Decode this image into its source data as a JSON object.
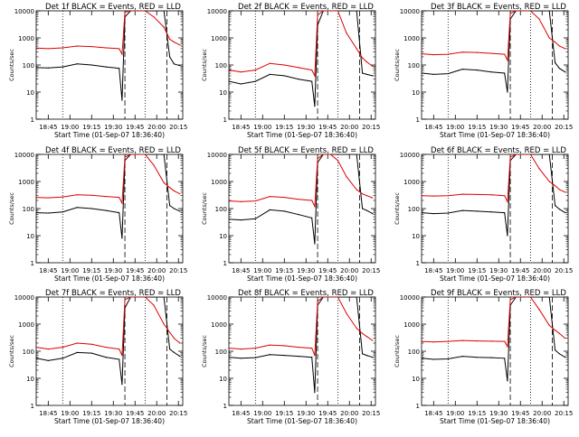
{
  "chart_data": {
    "type": "line",
    "layout": "3x3 grid",
    "shared_xlabel": "Start Time (01-Sep-07 18:36:40)",
    "shared_ylabel": "Counts/sec",
    "yscale": "log",
    "ylim": [
      1,
      10000
    ],
    "yticks": [
      "1",
      "10",
      "100",
      "1000",
      "10000"
    ],
    "xlim": [
      "18:36:40",
      "20:18:00"
    ],
    "xticks": [
      "18:45",
      "19:00",
      "19:15",
      "19:30",
      "19:45",
      "20:00",
      "20:15"
    ],
    "vertical_markers": [
      {
        "style": "dotted",
        "x": "18:55"
      },
      {
        "style": "dashed",
        "x": "19:38"
      },
      {
        "style": "dotted",
        "x": "19:52"
      },
      {
        "style": "dashed",
        "x": "20:07"
      }
    ],
    "colors": {
      "events": "#000000",
      "lld": "#dd0000"
    },
    "panels": [
      {
        "title": "Det 1f BLACK = Events, RED = LLD",
        "series": [
          {
            "name": "Events",
            "color": "#000000",
            "x": [
              "18:37",
              "18:45",
              "18:55",
              "19:05",
              "19:15",
              "19:25",
              "19:34",
              "19:36",
              "19:38",
              "19:42",
              "19:47",
              "19:52",
              "19:58",
              "20:05",
              "20:09",
              "20:12",
              "20:16"
            ],
            "y": [
              80,
              78,
              85,
              110,
              100,
              85,
              75,
              5,
              6000,
              10000,
              10000,
              10000,
              10000,
              10000,
              200,
              110,
              95
            ]
          },
          {
            "name": "LLD",
            "color": "#dd0000",
            "x": [
              "18:37",
              "18:45",
              "18:55",
              "19:05",
              "19:15",
              "19:25",
              "19:34",
              "19:36",
              "19:38",
              "19:42",
              "19:47",
              "19:52",
              "19:58",
              "20:05",
              "20:09",
              "20:12",
              "20:16"
            ],
            "y": [
              420,
              400,
              430,
              500,
              480,
              430,
              400,
              250,
              9000,
              10000,
              10000,
              10000,
              6000,
              2500,
              900,
              700,
              550
            ]
          }
        ]
      },
      {
        "title": "Det 2f BLACK = Events, RED = LLD",
        "series": [
          {
            "name": "Events",
            "color": "#000000",
            "x": [
              "18:37",
              "18:45",
              "18:55",
              "19:05",
              "19:15",
              "19:25",
              "19:34",
              "19:36",
              "19:38",
              "19:42",
              "19:47",
              "19:52",
              "19:58",
              "20:05",
              "20:09",
              "20:12",
              "20:16"
            ],
            "y": [
              25,
              20,
              25,
              45,
              40,
              30,
              25,
              3,
              3000,
              10000,
              10000,
              10000,
              10000,
              10000,
              50,
              45,
              40
            ]
          },
          {
            "name": "LLD",
            "color": "#dd0000",
            "x": [
              "18:37",
              "18:45",
              "18:55",
              "19:05",
              "19:15",
              "19:25",
              "19:34",
              "19:36",
              "19:38",
              "19:42",
              "19:47",
              "19:52",
              "19:58",
              "20:05",
              "20:09",
              "20:12",
              "20:16"
            ],
            "y": [
              65,
              55,
              65,
              115,
              100,
              80,
              65,
              40,
              7000,
              10000,
              10000,
              10000,
              1500,
              400,
              180,
              130,
              90
            ]
          }
        ]
      },
      {
        "title": "Det 3f BLACK = Events, RED = LLD",
        "series": [
          {
            "name": "Events",
            "color": "#000000",
            "x": [
              "18:37",
              "18:45",
              "18:55",
              "19:05",
              "19:15",
              "19:25",
              "19:34",
              "19:36",
              "19:38",
              "19:42",
              "19:47",
              "19:52",
              "19:58",
              "20:05",
              "20:09",
              "20:12",
              "20:16"
            ],
            "y": [
              50,
              45,
              48,
              70,
              65,
              55,
              50,
              10,
              5000,
              10000,
              10000,
              10000,
              10000,
              10000,
              120,
              75,
              55
            ]
          },
          {
            "name": "LLD",
            "color": "#dd0000",
            "x": [
              "18:37",
              "18:45",
              "18:55",
              "19:05",
              "19:15",
              "19:25",
              "19:34",
              "19:36",
              "19:38",
              "19:42",
              "19:47",
              "19:52",
              "19:58",
              "20:05",
              "20:09",
              "20:12",
              "20:16"
            ],
            "y": [
              260,
              240,
              250,
              300,
              290,
              270,
              250,
              150,
              8000,
              10000,
              10000,
              10000,
              5000,
              1000,
              700,
              500,
              400
            ]
          }
        ]
      },
      {
        "title": "Det 4f BLACK = Events, RED = LLD",
        "series": [
          {
            "name": "Events",
            "color": "#000000",
            "x": [
              "18:37",
              "18:45",
              "18:55",
              "19:05",
              "19:15",
              "19:25",
              "19:34",
              "19:36",
              "19:38",
              "19:42",
              "19:47",
              "19:52",
              "19:58",
              "20:05",
              "20:09",
              "20:12",
              "20:16"
            ],
            "y": [
              70,
              68,
              75,
              110,
              100,
              85,
              70,
              8,
              6000,
              10000,
              10000,
              10000,
              10000,
              10000,
              130,
              100,
              80
            ]
          },
          {
            "name": "LLD",
            "color": "#dd0000",
            "x": [
              "18:37",
              "18:45",
              "18:55",
              "19:05",
              "19:15",
              "19:25",
              "19:34",
              "19:36",
              "19:38",
              "19:42",
              "19:47",
              "19:52",
              "19:58",
              "20:05",
              "20:09",
              "20:12",
              "20:16"
            ],
            "y": [
              260,
              250,
              270,
              320,
              310,
              280,
              260,
              160,
              8000,
              10000,
              10000,
              10000,
              4000,
              900,
              600,
              450,
              350
            ]
          }
        ]
      },
      {
        "title": "Det 5f BLACK = Events, RED = LLD",
        "series": [
          {
            "name": "Events",
            "color": "#000000",
            "x": [
              "18:37",
              "18:45",
              "18:55",
              "19:05",
              "19:15",
              "19:25",
              "19:34",
              "19:36",
              "19:38",
              "19:42",
              "19:47",
              "19:52",
              "19:58",
              "20:05",
              "20:09",
              "20:12",
              "20:16"
            ],
            "y": [
              40,
              38,
              42,
              90,
              80,
              60,
              45,
              5,
              5000,
              10000,
              10000,
              10000,
              10000,
              10000,
              100,
              85,
              65
            ]
          },
          {
            "name": "LLD",
            "color": "#dd0000",
            "x": [
              "18:37",
              "18:45",
              "18:55",
              "19:05",
              "19:15",
              "19:25",
              "19:34",
              "19:36",
              "19:38",
              "19:42",
              "19:47",
              "19:52",
              "19:58",
              "20:05",
              "20:09",
              "20:12",
              "20:16"
            ],
            "y": [
              190,
              180,
              190,
              280,
              260,
              220,
              200,
              120,
              7000,
              10000,
              10000,
              6000,
              1500,
              500,
              350,
              300,
              250
            ]
          }
        ]
      },
      {
        "title": "Det 6f BLACK = Events, RED = LLD",
        "series": [
          {
            "name": "Events",
            "color": "#000000",
            "x": [
              "18:37",
              "18:45",
              "18:55",
              "19:05",
              "19:15",
              "19:25",
              "19:34",
              "19:36",
              "19:38",
              "19:42",
              "19:47",
              "19:52",
              "19:58",
              "20:05",
              "20:09",
              "20:12",
              "20:16"
            ],
            "y": [
              70,
              65,
              68,
              85,
              80,
              75,
              70,
              10,
              6000,
              10000,
              10000,
              10000,
              10000,
              10000,
              130,
              95,
              70
            ]
          },
          {
            "name": "LLD",
            "color": "#dd0000",
            "x": [
              "18:37",
              "18:45",
              "18:55",
              "19:05",
              "19:15",
              "19:25",
              "19:34",
              "19:36",
              "19:38",
              "19:42",
              "19:47",
              "19:52",
              "19:58",
              "20:05",
              "20:09",
              "20:12",
              "20:16"
            ],
            "y": [
              300,
              290,
              300,
              340,
              330,
              320,
              300,
              180,
              8000,
              10000,
              10000,
              10000,
              3000,
              1000,
              700,
              500,
              400
            ]
          }
        ]
      },
      {
        "title": "Det 7f BLACK = Events, RED = LLD",
        "series": [
          {
            "name": "Events",
            "color": "#000000",
            "x": [
              "18:37",
              "18:45",
              "18:55",
              "19:05",
              "19:15",
              "19:25",
              "19:34",
              "19:36",
              "19:38",
              "19:42",
              "19:47",
              "19:52",
              "19:58",
              "20:05",
              "20:09",
              "20:12",
              "20:16"
            ],
            "y": [
              55,
              45,
              55,
              90,
              85,
              60,
              50,
              6,
              4000,
              10000,
              10000,
              10000,
              10000,
              10000,
              120,
              90,
              65
            ]
          },
          {
            "name": "LLD",
            "color": "#dd0000",
            "x": [
              "18:37",
              "18:45",
              "18:55",
              "19:05",
              "19:15",
              "19:25",
              "19:34",
              "19:36",
              "19:38",
              "19:42",
              "19:47",
              "19:52",
              "19:58",
              "20:05",
              "20:09",
              "20:12",
              "20:16"
            ],
            "y": [
              140,
              120,
              140,
              200,
              180,
              140,
              120,
              70,
              8000,
              10000,
              10000,
              10000,
              5000,
              1000,
              500,
              300,
              200
            ]
          }
        ]
      },
      {
        "title": "Det 8f BLACK = Events, RED = LLD",
        "series": [
          {
            "name": "Events",
            "color": "#000000",
            "x": [
              "18:37",
              "18:45",
              "18:55",
              "19:05",
              "19:15",
              "19:25",
              "19:34",
              "19:36",
              "19:38",
              "19:42",
              "19:47",
              "19:52",
              "19:58",
              "20:05",
              "20:09",
              "20:12",
              "20:16"
            ],
            "y": [
              60,
              55,
              58,
              75,
              70,
              65,
              60,
              3,
              5000,
              10000,
              10000,
              10000,
              10000,
              10000,
              80,
              70,
              60
            ]
          },
          {
            "name": "LLD",
            "color": "#dd0000",
            "x": [
              "18:37",
              "18:45",
              "18:55",
              "19:05",
              "19:15",
              "19:25",
              "19:34",
              "19:36",
              "19:38",
              "19:42",
              "19:47",
              "19:52",
              "19:58",
              "20:05",
              "20:09",
              "20:12",
              "20:16"
            ],
            "y": [
              130,
              120,
              130,
              170,
              160,
              140,
              130,
              70,
              7000,
              10000,
              10000,
              10000,
              2500,
              700,
              450,
              350,
              250
            ]
          }
        ]
      },
      {
        "title": "Det 9f BLACK = Events, RED = LLD",
        "series": [
          {
            "name": "Events",
            "color": "#000000",
            "x": [
              "18:37",
              "18:45",
              "18:55",
              "19:05",
              "19:15",
              "19:25",
              "19:34",
              "19:36",
              "19:38",
              "19:42",
              "19:47",
              "19:52",
              "19:58",
              "20:05",
              "20:09",
              "20:12",
              "20:16"
            ],
            "y": [
              55,
              50,
              52,
              65,
              60,
              58,
              55,
              8,
              5000,
              10000,
              10000,
              10000,
              10000,
              10000,
              110,
              80,
              60
            ]
          },
          {
            "name": "LLD",
            "color": "#dd0000",
            "x": [
              "18:37",
              "18:45",
              "18:55",
              "19:05",
              "19:15",
              "19:25",
              "19:34",
              "19:36",
              "19:38",
              "19:42",
              "19:47",
              "19:52",
              "19:58",
              "20:05",
              "20:09",
              "20:12",
              "20:16"
            ],
            "y": [
              230,
              220,
              230,
              250,
              240,
              235,
              230,
              150,
              8000,
              10000,
              10000,
              10000,
              3500,
              900,
              600,
              450,
              300
            ]
          }
        ]
      }
    ]
  }
}
